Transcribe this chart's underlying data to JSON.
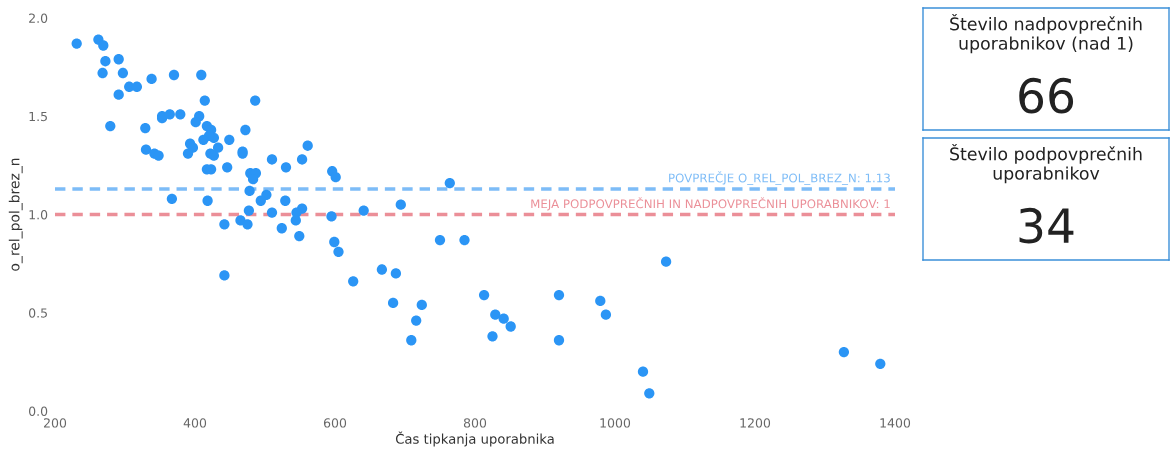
{
  "chart_data": [
    {
      "type": "scatter",
      "xlabel": "Čas tipkanja uporabnika",
      "ylabel": "o_rel_pol_brez_n",
      "x": [
        231,
        262,
        269,
        272,
        268,
        291,
        297,
        291,
        306,
        317,
        279,
        338,
        370,
        409,
        414,
        486,
        329,
        330,
        342,
        348,
        353,
        353,
        364,
        379,
        406,
        401,
        417,
        423,
        427,
        420,
        412,
        393,
        397,
        390,
        422,
        427,
        433,
        449,
        472,
        468,
        468,
        417,
        423,
        446,
        479,
        487,
        483,
        478,
        502,
        494,
        510,
        529,
        530,
        553,
        561,
        596,
        601,
        367,
        418,
        477,
        510,
        553,
        545,
        641,
        694,
        764,
        544,
        524,
        465,
        475,
        442,
        595,
        549,
        442,
        599,
        605,
        626,
        667,
        687,
        683,
        724,
        716,
        709,
        750,
        785,
        813,
        829,
        841,
        851,
        825,
        920,
        920,
        979,
        987,
        1073,
        1040,
        1049,
        1327,
        1379
      ],
      "values": [
        1.87,
        1.89,
        1.86,
        1.78,
        1.72,
        1.79,
        1.72,
        1.61,
        1.65,
        1.65,
        1.45,
        1.69,
        1.71,
        1.71,
        1.58,
        1.58,
        1.44,
        1.33,
        1.31,
        1.3,
        1.5,
        1.49,
        1.51,
        1.51,
        1.5,
        1.47,
        1.45,
        1.43,
        1.39,
        1.4,
        1.38,
        1.36,
        1.34,
        1.31,
        1.31,
        1.3,
        1.34,
        1.38,
        1.43,
        1.32,
        1.31,
        1.23,
        1.23,
        1.24,
        1.21,
        1.21,
        1.18,
        1.12,
        1.1,
        1.07,
        1.28,
        1.07,
        1.24,
        1.28,
        1.35,
        1.22,
        1.19,
        1.08,
        1.07,
        1.02,
        1.01,
        1.03,
        1.01,
        1.02,
        1.05,
        1.16,
        0.97,
        0.93,
        0.97,
        0.95,
        0.95,
        0.99,
        0.89,
        0.69,
        0.86,
        0.81,
        0.66,
        0.72,
        0.7,
        0.55,
        0.54,
        0.46,
        0.36,
        0.87,
        0.87,
        0.59,
        0.49,
        0.47,
        0.43,
        0.38,
        0.59,
        0.36,
        0.56,
        0.49,
        0.76,
        0.2,
        0.09,
        0.3,
        0.24
      ],
      "color": "#2b95f5",
      "marker": "circle",
      "grid": false,
      "legend": false,
      "xlim": [
        200,
        1400
      ],
      "xticks": [
        200,
        400,
        600,
        800,
        1000,
        1200,
        1400
      ],
      "ylim": [
        0,
        2.0
      ],
      "yticks": [
        {
          "value": 0,
          "label": "0.0"
        },
        {
          "value": 0.5,
          "label": "0.5"
        },
        {
          "value": 1.0,
          "label": "1.0"
        },
        {
          "value": 1.5,
          "label": "1.5"
        },
        {
          "value": 2.0,
          "label": "2.0"
        }
      ],
      "ref_lines": [
        {
          "axis": "y",
          "value": 1.13,
          "label": "POVPREČJE O_REL_POL_BREZ_N: 1.13",
          "color": "#7dbcf7",
          "line_style": "dashed"
        },
        {
          "axis": "y",
          "value": 1,
          "label": "MEJA PODPOVPREČNIH IN NADPOVPREČNIH UPORABNIKOV: 1",
          "color": "#eb8f98",
          "line_style": "dashed"
        }
      ]
    },
    {
      "type": "other",
      "title": "Število nadpovprečnih uporabnikov (nad 1)",
      "annotations": [
        "66"
      ]
    },
    {
      "type": "other",
      "title": "Število podpovprečnih uporabnikov",
      "annotations": [
        "34"
      ]
    }
  ]
}
